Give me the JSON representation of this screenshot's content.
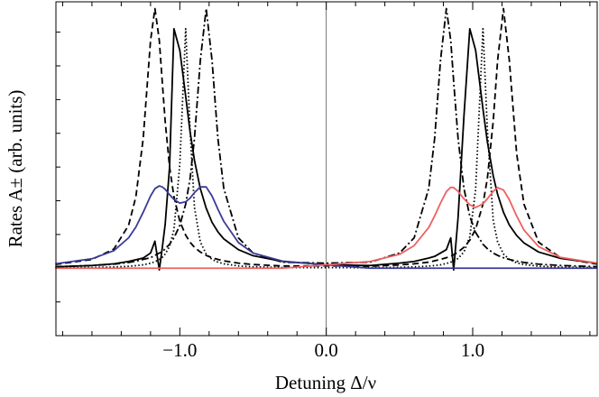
{
  "chart_data": {
    "type": "line",
    "xlabel": "Detuning Δ/ν",
    "ylabel": "Rates A± (arb. units)",
    "x": [
      -1.85,
      -1.6,
      -1.45,
      -1.35,
      -1.3,
      -1.25,
      -1.2,
      -1.17,
      -1.14,
      -1.12,
      -1.1,
      -1.07,
      -1.04,
      -1.0,
      -0.96,
      -0.93,
      -0.9,
      -0.86,
      -0.82,
      -0.78,
      -0.74,
      -0.7,
      -0.6,
      -0.5,
      -0.3,
      0,
      0.3,
      0.5,
      0.6,
      0.7,
      0.74,
      0.78,
      0.82,
      0.85,
      0.87,
      0.9,
      0.94,
      0.98,
      1.02,
      1.07,
      1.1,
      1.14,
      1.17,
      1.21,
      1.25,
      1.3,
      1.35,
      1.45,
      1.6,
      1.85
    ],
    "series": [
      {
        "color": "#000000",
        "style": "dashed",
        "values": [
          0.11,
          0.26,
          0.57,
          1.27,
          2.12,
          3.85,
          6.75,
          7.7,
          6.75,
          5.53,
          4.36,
          3.0,
          2.12,
          1.39,
          0.98,
          0.77,
          0.62,
          0.48,
          0.38,
          0.31,
          0.26,
          0.22,
          0.15,
          0.11,
          0.065,
          0.07,
          0.059,
          0.096,
          0.13,
          0.18,
          0.22,
          0.26,
          0.31,
          0.36,
          0.4,
          0.48,
          0.62,
          0.83,
          1.16,
          1.9,
          2.66,
          4.36,
          6.16,
          7.7,
          6.16,
          3.4,
          1.9,
          0.77,
          0.31,
          0.12
        ]
      },
      {
        "color": "#000000",
        "style": "dashdot",
        "values": [
          0.046,
          0.08,
          0.12,
          0.17,
          0.21,
          0.26,
          0.31,
          0.38,
          0.45,
          0.48,
          0.58,
          0.71,
          0.9,
          1.27,
          1.9,
          2.66,
          3.85,
          6.16,
          7.7,
          6.16,
          3.85,
          2.37,
          0.9,
          0.45,
          0.18,
          0.15,
          0.18,
          0.45,
          0.9,
          2.37,
          3.85,
          6.16,
          7.7,
          6.75,
          5.53,
          3.85,
          2.37,
          1.54,
          1.06,
          0.71,
          0.58,
          0.45,
          0.38,
          0.31,
          0.26,
          0.21,
          0.17,
          0.12,
          0.08,
          0.046
        ]
      },
      {
        "color": "#000000",
        "style": "dotted",
        "values": [
          0.011,
          0.021,
          0.036,
          0.057,
          0.075,
          0.1,
          0.15,
          0.19,
          0.26,
          0.32,
          0.42,
          0.65,
          1.14,
          3.08,
          7.1,
          4.1,
          1.8,
          0.78,
          0.42,
          0.26,
          0.18,
          0.13,
          0.067,
          0.041,
          0.02,
          0.017,
          0.015,
          0.027,
          0.039,
          0.063,
          0.079,
          0.1,
          0.14,
          0.18,
          0.21,
          0.29,
          0.48,
          0.93,
          2.34,
          7.1,
          4.1,
          1.42,
          0.78,
          0.42,
          0.26,
          0.16,
          0.11,
          0.06,
          0.031,
          0.014
        ]
      },
      {
        "color": "#000000",
        "style": "solid",
        "values": [
          0.04,
          0.08,
          0.13,
          0.2,
          0.25,
          0.3,
          0.45,
          0.8,
          -0.05,
          0.6,
          1.3,
          3.0,
          7.1,
          6.46,
          5.1,
          4.05,
          3.2,
          2.36,
          1.78,
          1.36,
          1.08,
          0.87,
          0.55,
          0.37,
          0.2,
          0.1,
          0.08,
          0.15,
          0.2,
          0.3,
          0.35,
          0.45,
          0.55,
          0.9,
          -0.05,
          1.5,
          4.5,
          7.1,
          6.46,
          4.72,
          3.75,
          2.74,
          2.19,
          1.66,
          1.28,
          0.97,
          0.75,
          0.48,
          0.29,
          0.15
        ]
      },
      {
        "color": "#3a3a9a",
        "style": "solid",
        "values": [
          0.13,
          0.28,
          0.52,
          0.9,
          1.22,
          1.66,
          2.14,
          2.36,
          2.44,
          2.41,
          2.34,
          2.18,
          2.04,
          1.93,
          1.97,
          2.08,
          2.24,
          2.41,
          2.41,
          2.14,
          1.75,
          1.39,
          0.76,
          0.45,
          0.21,
          0.1,
          0,
          0,
          0,
          0,
          0,
          0,
          0,
          0,
          0,
          0,
          0,
          0,
          0,
          0,
          0,
          0,
          0,
          0,
          0,
          0,
          0,
          0,
          0,
          0
        ]
      },
      {
        "color": "#f06060",
        "style": "solid",
        "values": [
          0,
          0,
          0,
          0,
          0,
          0,
          0,
          0,
          0,
          0,
          0,
          0,
          0,
          0,
          0,
          0,
          0,
          0,
          0,
          0,
          0,
          0,
          0,
          0,
          0,
          0.1,
          0.2,
          0.41,
          0.67,
          1.21,
          1.55,
          1.93,
          2.27,
          2.4,
          2.39,
          2.28,
          2.06,
          1.88,
          1.8,
          1.91,
          2.06,
          2.28,
          2.39,
          2.32,
          2.03,
          1.55,
          1.13,
          0.64,
          0.32,
          0.15
        ]
      }
    ],
    "xlim": [
      -1.846,
      1.85
    ],
    "ylim": [
      -2,
      7.9
    ],
    "xticks": [
      {
        "value": -1,
        "label": "−1.0"
      },
      {
        "value": 0,
        "label": "0.0"
      },
      {
        "value": 1,
        "label": "1.0"
      }
    ],
    "xminorticks": [
      -1.8,
      -1.6,
      -1.4,
      -1.2,
      -0.8,
      -0.6,
      -0.4,
      -0.2,
      0.2,
      0.4,
      0.6,
      0.8,
      1.2,
      1.4,
      1.6,
      1.8
    ],
    "yticks": [
      -1,
      0,
      1,
      2,
      3,
      4,
      5,
      6,
      7
    ],
    "vlines": [
      0
    ]
  }
}
